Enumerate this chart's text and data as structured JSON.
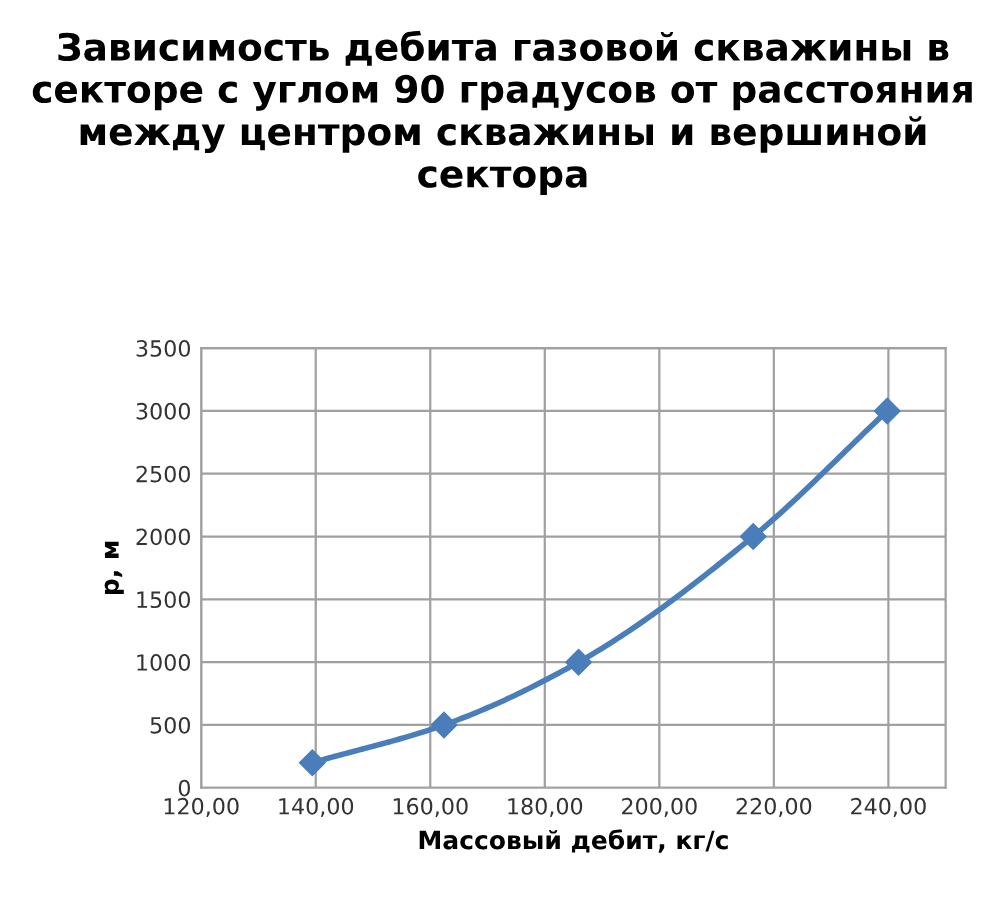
{
  "chart_data": {
    "type": "line",
    "title": "Зависимость дебита газовой скважины в секторе с углом 90 градусов от расстояния между центром скважины и вершиной сектора",
    "xlabel": "Массовый дебит, кг/с",
    "ylabel": "р, м",
    "x": [
      139.4,
      162.4,
      185.9,
      216.4,
      239.8
    ],
    "series": [
      {
        "color": "#4a7ebb",
        "values": [
          200,
          500,
          1000,
          2000,
          3000
        ]
      }
    ],
    "xlim": [
      120,
      250
    ],
    "xticks": [
      {
        "value": 120,
        "label": "120,00"
      },
      {
        "value": 140,
        "label": "140,00"
      },
      {
        "value": 160,
        "label": "160,00"
      },
      {
        "value": 180,
        "label": "180,00"
      },
      {
        "value": 200,
        "label": "200,00"
      },
      {
        "value": 220,
        "label": "220,00"
      },
      {
        "value": 240,
        "label": "240,00"
      }
    ],
    "ylim": [
      0,
      3500
    ],
    "yticks": [
      0,
      500,
      1000,
      1500,
      2000,
      2500,
      3000,
      3500
    ],
    "grid": true,
    "marker": "diamond",
    "line_style": "solid"
  }
}
